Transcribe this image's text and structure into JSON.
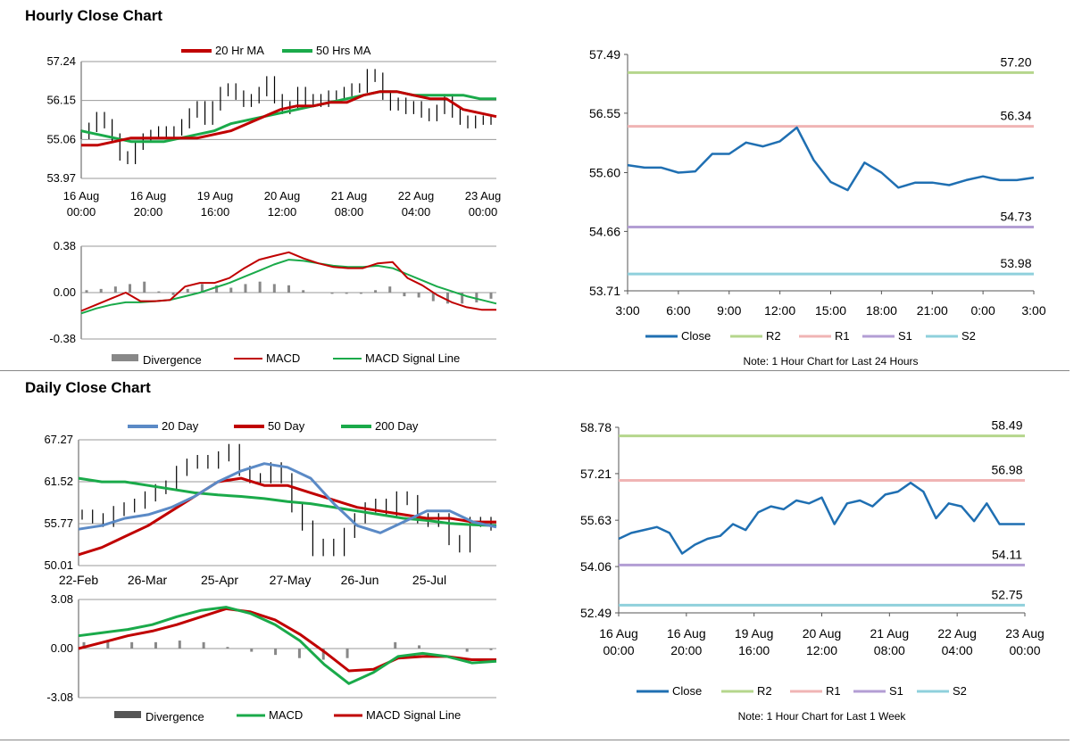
{
  "sections": {
    "hourly_title": "Hourly Close Chart",
    "daily_title": "Daily Close Chart"
  },
  "colors": {
    "ma_red": "#c00000",
    "ma_green": "#1aaa4a",
    "ma_blue": "#5b8ac6",
    "close": "#1f6fb2",
    "r2": "#b5d68c",
    "r1": "#f0b4b4",
    "s1": "#b39ed4",
    "s2": "#8fd0dc",
    "divergence": "#888888",
    "grid": "#999999"
  },
  "chart_data": [
    {
      "id": "hourly_price",
      "type": "line",
      "title": "Hourly Close Chart",
      "legend": [
        "20 Hr MA",
        "50 Hrs MA"
      ],
      "y_ticks": [
        "57.24",
        "56.15",
        "55.06",
        "53.97"
      ],
      "ylim": [
        53.97,
        57.24
      ],
      "x_ticks": [
        [
          "16 Aug",
          "00:00"
        ],
        [
          "16 Aug",
          "20:00"
        ],
        [
          "19 Aug",
          "16:00"
        ],
        [
          "20 Aug",
          "12:00"
        ],
        [
          "21 Aug",
          "08:00"
        ],
        [
          "22 Aug",
          "04:00"
        ],
        [
          "23 Aug",
          "00:00"
        ]
      ],
      "price": [
        55.2,
        55.4,
        55.7,
        55.5,
        55.1,
        54.6,
        54.5,
        54.9,
        55.1,
        55.2,
        55.3,
        55.2,
        55.3,
        55.5,
        55.8,
        56.0,
        55.6,
        56.0,
        56.4,
        56.5,
        56.3,
        56.1,
        56.2,
        56.4,
        56.7,
        56.2,
        55.9,
        56.0,
        56.4,
        56.1,
        56.2,
        56.1,
        56.3,
        56.3,
        56.4,
        56.5,
        56.5,
        56.9,
        56.8,
        56.3,
        56.0,
        56.1,
        55.9,
        56.0,
        55.8,
        55.7,
        55.9,
        56.2,
        55.8,
        55.6,
        55.5,
        55.6,
        55.6,
        55.6
      ],
      "series": [
        {
          "name": "20 Hr MA",
          "values": [
            54.9,
            54.9,
            55.0,
            55.1,
            55.1,
            55.1,
            55.1,
            55.1,
            55.2,
            55.3,
            55.5,
            55.7,
            55.9,
            56.0,
            56.0,
            56.1,
            56.1,
            56.3,
            56.4,
            56.4,
            56.3,
            56.2,
            56.2,
            55.9,
            55.8,
            55.7
          ]
        },
        {
          "name": "50 Hrs MA",
          "values": [
            55.3,
            55.2,
            55.1,
            55.0,
            55.0,
            55.0,
            55.1,
            55.2,
            55.3,
            55.5,
            55.6,
            55.7,
            55.8,
            55.9,
            56.0,
            56.1,
            56.2,
            56.3,
            56.4,
            56.4,
            56.3,
            56.3,
            56.3,
            56.3,
            56.2,
            56.2
          ]
        }
      ]
    },
    {
      "id": "hourly_macd",
      "type": "line",
      "y_ticks": [
        "0.38",
        "0.00",
        "-0.38"
      ],
      "ylim": [
        -0.38,
        0.38
      ],
      "legend": [
        "Divergence",
        "MACD",
        "MACD Signal Line"
      ],
      "series": [
        {
          "name": "MACD",
          "values": [
            -0.15,
            -0.1,
            -0.05,
            0.0,
            -0.07,
            -0.07,
            -0.06,
            0.05,
            0.08,
            0.08,
            0.12,
            0.2,
            0.27,
            0.3,
            0.33,
            0.28,
            0.24,
            0.21,
            0.2,
            0.2,
            0.24,
            0.25,
            0.12,
            0.06,
            -0.02,
            -0.08,
            -0.12,
            -0.14,
            -0.14
          ]
        },
        {
          "name": "MACD Signal Line",
          "values": [
            -0.17,
            -0.13,
            -0.1,
            -0.08,
            -0.08,
            -0.07,
            -0.06,
            -0.03,
            0.0,
            0.04,
            0.08,
            0.13,
            0.18,
            0.23,
            0.27,
            0.26,
            0.24,
            0.22,
            0.21,
            0.21,
            0.22,
            0.2,
            0.15,
            0.1,
            0.05,
            0.01,
            -0.03,
            -0.06,
            -0.09
          ]
        }
      ],
      "divergence": [
        0.02,
        0.03,
        0.05,
        0.07,
        0.09,
        0.01,
        -0.02,
        0.03,
        0.07,
        0.06,
        0.04,
        0.07,
        0.09,
        0.07,
        0.06,
        0.02,
        0.0,
        -0.01,
        -0.01,
        -0.01,
        0.02,
        0.05,
        -0.03,
        -0.04,
        -0.07,
        -0.09,
        -0.09,
        -0.08,
        -0.05
      ]
    },
    {
      "id": "hourly_pivot",
      "type": "line",
      "y_ticks": [
        "57.49",
        "56.55",
        "55.60",
        "54.66",
        "53.71"
      ],
      "ylim": [
        53.71,
        57.49
      ],
      "x_ticks": [
        "3:00",
        "6:00",
        "9:00",
        "12:00",
        "15:00",
        "18:00",
        "21:00",
        "0:00",
        "3:00"
      ],
      "legend": [
        "Close",
        "R2",
        "R1",
        "S1",
        "S2"
      ],
      "levels": {
        "R2": 57.2,
        "R1": 56.34,
        "S1": 54.73,
        "S2": 53.98
      },
      "level_labels": {
        "R2": "57.20",
        "R1": "56.34",
        "S1": "54.73",
        "S2": "53.98"
      },
      "close": [
        55.72,
        55.68,
        55.68,
        55.6,
        55.62,
        55.9,
        55.9,
        56.08,
        56.02,
        56.1,
        56.32,
        55.8,
        55.45,
        55.32,
        55.76,
        55.6,
        55.36,
        55.44,
        55.44,
        55.4,
        55.48,
        55.54,
        55.48,
        55.48,
        55.52
      ],
      "note": "Note: 1 Hour Chart for Last 24 Hours"
    },
    {
      "id": "daily_price",
      "type": "line",
      "title": "Daily Close Chart",
      "legend": [
        "20 Day",
        "50 Day",
        "200 Day"
      ],
      "y_ticks": [
        "67.27",
        "61.52",
        "55.77",
        "50.01"
      ],
      "ylim": [
        50.01,
        67.27
      ],
      "x_ticks": [
        "22-Feb",
        "26-Mar",
        "25-Apr",
        "27-May",
        "26-Jun",
        "25-Jul"
      ],
      "price": [
        57.0,
        56.5,
        56.0,
        57.5,
        58.0,
        58.5,
        59.5,
        60.5,
        61.0,
        63.0,
        64.0,
        64.5,
        64.0,
        65.0,
        66.0,
        63.0,
        62.0,
        62.0,
        63.5,
        62.0,
        58.0,
        55.5,
        52.0,
        53.0,
        52.0,
        54.5,
        56.5,
        58.0,
        58.5,
        57.5,
        59.5,
        59.0,
        56.5,
        56.0,
        56.5,
        53.5,
        52.5,
        56.0,
        56.0,
        55.5
      ],
      "series": [
        {
          "name": "20 Day",
          "values": [
            55.0,
            55.5,
            56.5,
            57.0,
            58.0,
            59.5,
            61.5,
            63.0,
            64.0,
            63.5,
            62.0,
            58.5,
            55.5,
            54.5,
            56.0,
            57.5,
            57.5,
            56.0,
            55.3
          ]
        },
        {
          "name": "50 Day",
          "values": [
            51.5,
            52.5,
            54.0,
            55.5,
            57.5,
            59.5,
            61.5,
            62.0,
            61.0,
            61.0,
            60.0,
            59.0,
            58.0,
            57.5,
            57.0,
            56.5,
            56.5,
            56.0,
            56.0
          ]
        },
        {
          "name": "200 Day",
          "values": [
            62.0,
            61.5,
            61.5,
            61.0,
            60.5,
            60.0,
            59.7,
            59.5,
            59.2,
            58.8,
            58.5,
            58.0,
            57.5,
            57.0,
            56.5,
            56.2,
            55.8,
            55.6,
            55.5
          ]
        }
      ]
    },
    {
      "id": "daily_macd",
      "type": "line",
      "y_ticks": [
        "3.08",
        "0.00",
        "-3.08"
      ],
      "ylim": [
        -3.08,
        3.08
      ],
      "legend": [
        "Divergence",
        "MACD",
        "MACD Signal Line"
      ],
      "series": [
        {
          "name": "MACD",
          "values": [
            0.8,
            1.0,
            1.2,
            1.5,
            2.0,
            2.4,
            2.6,
            2.2,
            1.5,
            0.5,
            -1.0,
            -2.2,
            -1.5,
            -0.5,
            -0.3,
            -0.5,
            -0.9,
            -0.8
          ]
        },
        {
          "name": "MACD Signal Line",
          "values": [
            0.0,
            0.4,
            0.8,
            1.1,
            1.5,
            2.0,
            2.5,
            2.3,
            1.8,
            0.9,
            -0.2,
            -1.4,
            -1.3,
            -0.6,
            -0.5,
            -0.5,
            -0.7,
            -0.7
          ]
        }
      ],
      "divergence": [
        0.4,
        0.5,
        0.4,
        0.4,
        0.5,
        0.4,
        0.1,
        -0.2,
        -0.4,
        -0.6,
        -0.7,
        -0.6,
        0.0,
        0.4,
        0.2,
        0.0,
        -0.2,
        -0.1
      ],
      "zero_label": "0.00"
    },
    {
      "id": "daily_pivot",
      "type": "line",
      "y_ticks": [
        "58.78",
        "57.21",
        "55.63",
        "54.06",
        "52.49"
      ],
      "ylim": [
        52.49,
        58.78
      ],
      "x_ticks": [
        [
          "16 Aug",
          "00:00"
        ],
        [
          "16 Aug",
          "20:00"
        ],
        [
          "19 Aug",
          "16:00"
        ],
        [
          "20 Aug",
          "12:00"
        ],
        [
          "21 Aug",
          "08:00"
        ],
        [
          "22 Aug",
          "04:00"
        ],
        [
          "23 Aug",
          "00:00"
        ]
      ],
      "legend": [
        "Close",
        "R2",
        "R1",
        "S1",
        "S2"
      ],
      "levels": {
        "R2": 58.49,
        "R1": 56.98,
        "S1": 54.11,
        "S2": 52.75
      },
      "level_labels": {
        "R2": "58.49",
        "R1": "56.98",
        "S1": "54.11",
        "S2": "52.75"
      },
      "close": [
        55.0,
        55.2,
        55.3,
        55.4,
        55.2,
        54.5,
        54.8,
        55.0,
        55.1,
        55.5,
        55.3,
        55.9,
        56.1,
        56.0,
        56.3,
        56.2,
        56.4,
        55.5,
        56.2,
        56.3,
        56.1,
        56.5,
        56.6,
        56.9,
        56.6,
        55.7,
        56.2,
        56.1,
        55.6,
        56.2,
        55.5,
        55.5,
        55.5
      ],
      "note": "Note: 1 Hour Chart for Last 1 Week"
    }
  ]
}
